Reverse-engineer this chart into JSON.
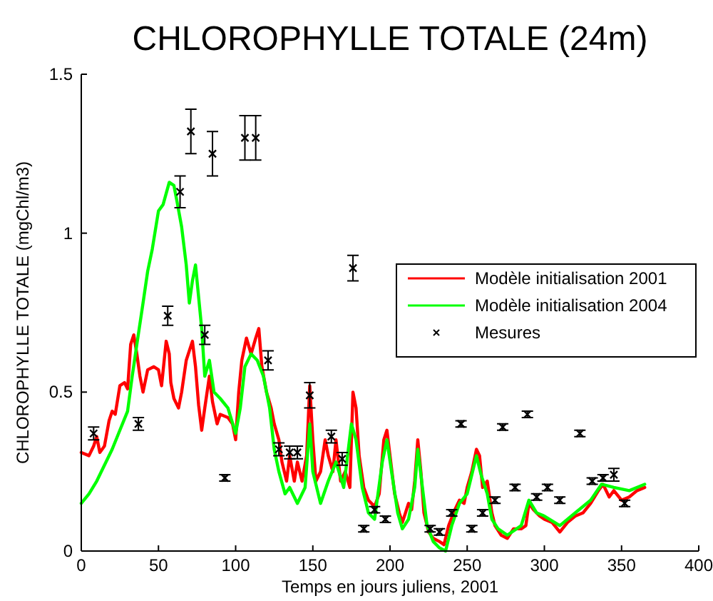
{
  "chart_data": {
    "type": "line",
    "title": "CHLOROPHYLLE TOTALE (24m)",
    "xlabel": "Temps en jours juliens, 2001",
    "ylabel": "CHLOROPHYLLE TOTALE (mgChl/m3)",
    "xlim": [
      0,
      400
    ],
    "xticks": [
      0,
      50,
      100,
      150,
      200,
      250,
      300,
      350,
      400
    ],
    "ylim": [
      0,
      1.5
    ],
    "yticks": [
      0,
      0.5,
      1,
      1.5
    ],
    "grid": false,
    "legend": "right",
    "line_style": "solid",
    "series": [
      {
        "name": "Modèle initialisation 2001",
        "color": "#ff0000",
        "marker": "none",
        "x": [
          0,
          5,
          8,
          10,
          12,
          15,
          18,
          20,
          22,
          25,
          28,
          30,
          32,
          34,
          36,
          38,
          40,
          43,
          47,
          50,
          52,
          55,
          57,
          58,
          60,
          63,
          65,
          68,
          70,
          72,
          74,
          76,
          78,
          80,
          83,
          85,
          88,
          90,
          95,
          98,
          100,
          102,
          104,
          107,
          110,
          113,
          115,
          117,
          120,
          123,
          125,
          128,
          130,
          133,
          135,
          138,
          140,
          143,
          146,
          148,
          150,
          152,
          155,
          158,
          160,
          163,
          165,
          168,
          171,
          174,
          176,
          178,
          180,
          183,
          186,
          190,
          193,
          196,
          198,
          200,
          203,
          206,
          208,
          210,
          212,
          214,
          216,
          218,
          220,
          222,
          225,
          228,
          232,
          235,
          238,
          242,
          245,
          248,
          250,
          253,
          256,
          258,
          260,
          263,
          266,
          268,
          272,
          276,
          280,
          285,
          288,
          290,
          293,
          297,
          300,
          305,
          310,
          315,
          320,
          325,
          330,
          335,
          338,
          342,
          345,
          350,
          355,
          360,
          365
        ],
        "values": [
          0.31,
          0.3,
          0.33,
          0.36,
          0.31,
          0.33,
          0.41,
          0.44,
          0.43,
          0.52,
          0.53,
          0.51,
          0.65,
          0.68,
          0.62,
          0.55,
          0.5,
          0.57,
          0.58,
          0.57,
          0.52,
          0.66,
          0.62,
          0.53,
          0.48,
          0.45,
          0.5,
          0.6,
          0.63,
          0.66,
          0.58,
          0.46,
          0.38,
          0.45,
          0.55,
          0.47,
          0.4,
          0.43,
          0.42,
          0.4,
          0.35,
          0.5,
          0.6,
          0.67,
          0.62,
          0.67,
          0.7,
          0.58,
          0.5,
          0.45,
          0.4,
          0.35,
          0.28,
          0.22,
          0.3,
          0.22,
          0.28,
          0.22,
          0.3,
          0.52,
          0.35,
          0.22,
          0.25,
          0.35,
          0.3,
          0.25,
          0.35,
          0.22,
          0.25,
          0.2,
          0.5,
          0.45,
          0.3,
          0.2,
          0.16,
          0.14,
          0.18,
          0.35,
          0.38,
          0.3,
          0.18,
          0.12,
          0.09,
          0.12,
          0.15,
          0.13,
          0.22,
          0.35,
          0.25,
          0.12,
          0.06,
          0.04,
          0.03,
          0.02,
          0.08,
          0.13,
          0.16,
          0.15,
          0.2,
          0.25,
          0.32,
          0.3,
          0.2,
          0.22,
          0.12,
          0.08,
          0.05,
          0.04,
          0.07,
          0.07,
          0.08,
          0.15,
          0.13,
          0.11,
          0.1,
          0.09,
          0.06,
          0.09,
          0.11,
          0.12,
          0.15,
          0.19,
          0.21,
          0.17,
          0.19,
          0.16,
          0.17,
          0.19,
          0.2
        ]
      },
      {
        "name": "Modèle initialisation 2004",
        "color": "#00ff00",
        "marker": "none",
        "x": [
          0,
          5,
          10,
          15,
          20,
          25,
          30,
          33,
          36,
          40,
          43,
          46,
          50,
          53,
          57,
          60,
          62,
          65,
          68,
          70,
          72,
          74,
          76,
          78,
          80,
          83,
          86,
          90,
          95,
          100,
          103,
          106,
          110,
          114,
          118,
          122,
          125,
          128,
          132,
          135,
          140,
          145,
          148,
          150,
          155,
          160,
          165,
          170,
          175,
          178,
          182,
          186,
          190,
          195,
          198,
          201,
          205,
          208,
          212,
          216,
          218,
          221,
          224,
          228,
          232,
          236,
          240,
          245,
          250,
          256,
          259,
          263,
          266,
          270,
          276,
          285,
          290,
          295,
          300,
          310,
          320,
          330,
          337,
          345,
          355,
          365
        ],
        "values": [
          0.15,
          0.18,
          0.22,
          0.27,
          0.32,
          0.38,
          0.44,
          0.55,
          0.65,
          0.78,
          0.88,
          0.95,
          1.07,
          1.09,
          1.16,
          1.15,
          1.1,
          1.02,
          0.9,
          0.78,
          0.85,
          0.9,
          0.8,
          0.7,
          0.55,
          0.6,
          0.5,
          0.48,
          0.45,
          0.37,
          0.45,
          0.58,
          0.62,
          0.6,
          0.55,
          0.45,
          0.32,
          0.25,
          0.18,
          0.2,
          0.15,
          0.2,
          0.4,
          0.25,
          0.15,
          0.22,
          0.28,
          0.2,
          0.4,
          0.35,
          0.2,
          0.12,
          0.1,
          0.28,
          0.35,
          0.25,
          0.12,
          0.07,
          0.1,
          0.2,
          0.32,
          0.2,
          0.08,
          0.03,
          0.01,
          0.0,
          0.08,
          0.15,
          0.18,
          0.3,
          0.24,
          0.18,
          0.1,
          0.07,
          0.05,
          0.08,
          0.16,
          0.12,
          0.11,
          0.08,
          0.12,
          0.16,
          0.21,
          0.2,
          0.19,
          0.21
        ]
      },
      {
        "name": "Mesures",
        "color": "#000000",
        "type": "scatter",
        "marker": "cross",
        "x": [
          8,
          37,
          56,
          64,
          71,
          80,
          85,
          93,
          106,
          113,
          121,
          128,
          135,
          140,
          148,
          162,
          169,
          176,
          183,
          190,
          197,
          226,
          232,
          240,
          246,
          253,
          260,
          268,
          273,
          281,
          289,
          295,
          302,
          310,
          323,
          331,
          338,
          345,
          352
        ],
        "values": [
          0.37,
          0.4,
          0.74,
          1.13,
          1.32,
          0.68,
          1.25,
          0.23,
          1.3,
          1.3,
          0.6,
          0.32,
          0.31,
          0.31,
          0.49,
          0.36,
          0.29,
          0.89,
          0.07,
          0.13,
          0.1,
          0.07,
          0.06,
          0.12,
          0.4,
          0.07,
          0.12,
          0.16,
          0.39,
          0.2,
          0.43,
          0.17,
          0.2,
          0.16,
          0.37,
          0.22,
          0.23,
          0.24,
          0.15
        ],
        "errors": [
          0.02,
          0.02,
          0.03,
          0.05,
          0.07,
          0.03,
          0.07,
          0.01,
          0.07,
          0.07,
          0.03,
          0.02,
          0.02,
          0.02,
          0.04,
          0.02,
          0.02,
          0.04,
          0.01,
          0.01,
          0.01,
          0.01,
          0.01,
          0.01,
          0.01,
          0.01,
          0.01,
          0.01,
          0.01,
          0.01,
          0.01,
          0.01,
          0.01,
          0.01,
          0.01,
          0.01,
          0.01,
          0.02,
          0.01
        ]
      }
    ]
  }
}
